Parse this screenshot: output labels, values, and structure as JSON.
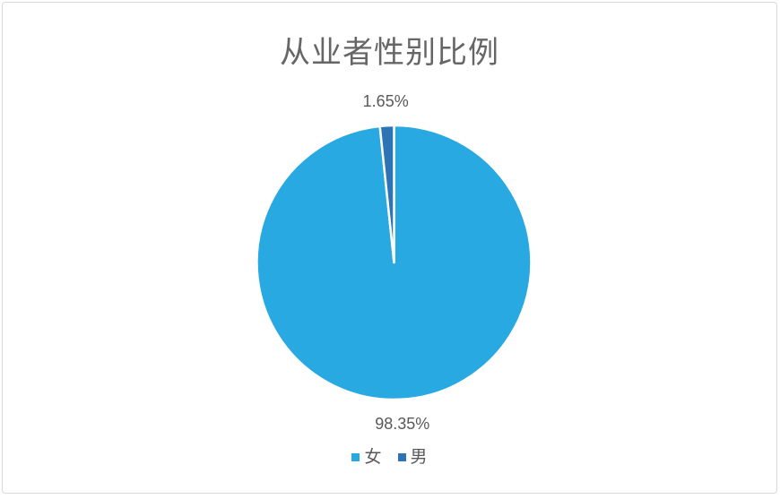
{
  "page": {
    "background": "#ffffff",
    "frame_border_color": "#d9d9d9"
  },
  "chart_data": {
    "type": "pie",
    "title": "从业者性别比例",
    "categories": [
      "女",
      "男"
    ],
    "values": [
      98.35,
      1.65
    ],
    "labels": [
      "98.35%",
      "1.65%"
    ],
    "colors": [
      "#29a9e1",
      "#2e74b5"
    ],
    "start_angle_deg": 0,
    "direction": "clockwise",
    "slice_border_color": "#ffffff",
    "title_color": "#666666",
    "label_color": "#595959",
    "legend_position": "bottom",
    "legend": [
      {
        "label": "女",
        "color": "#29a9e1"
      },
      {
        "label": "男",
        "color": "#2e74b5"
      }
    ]
  }
}
